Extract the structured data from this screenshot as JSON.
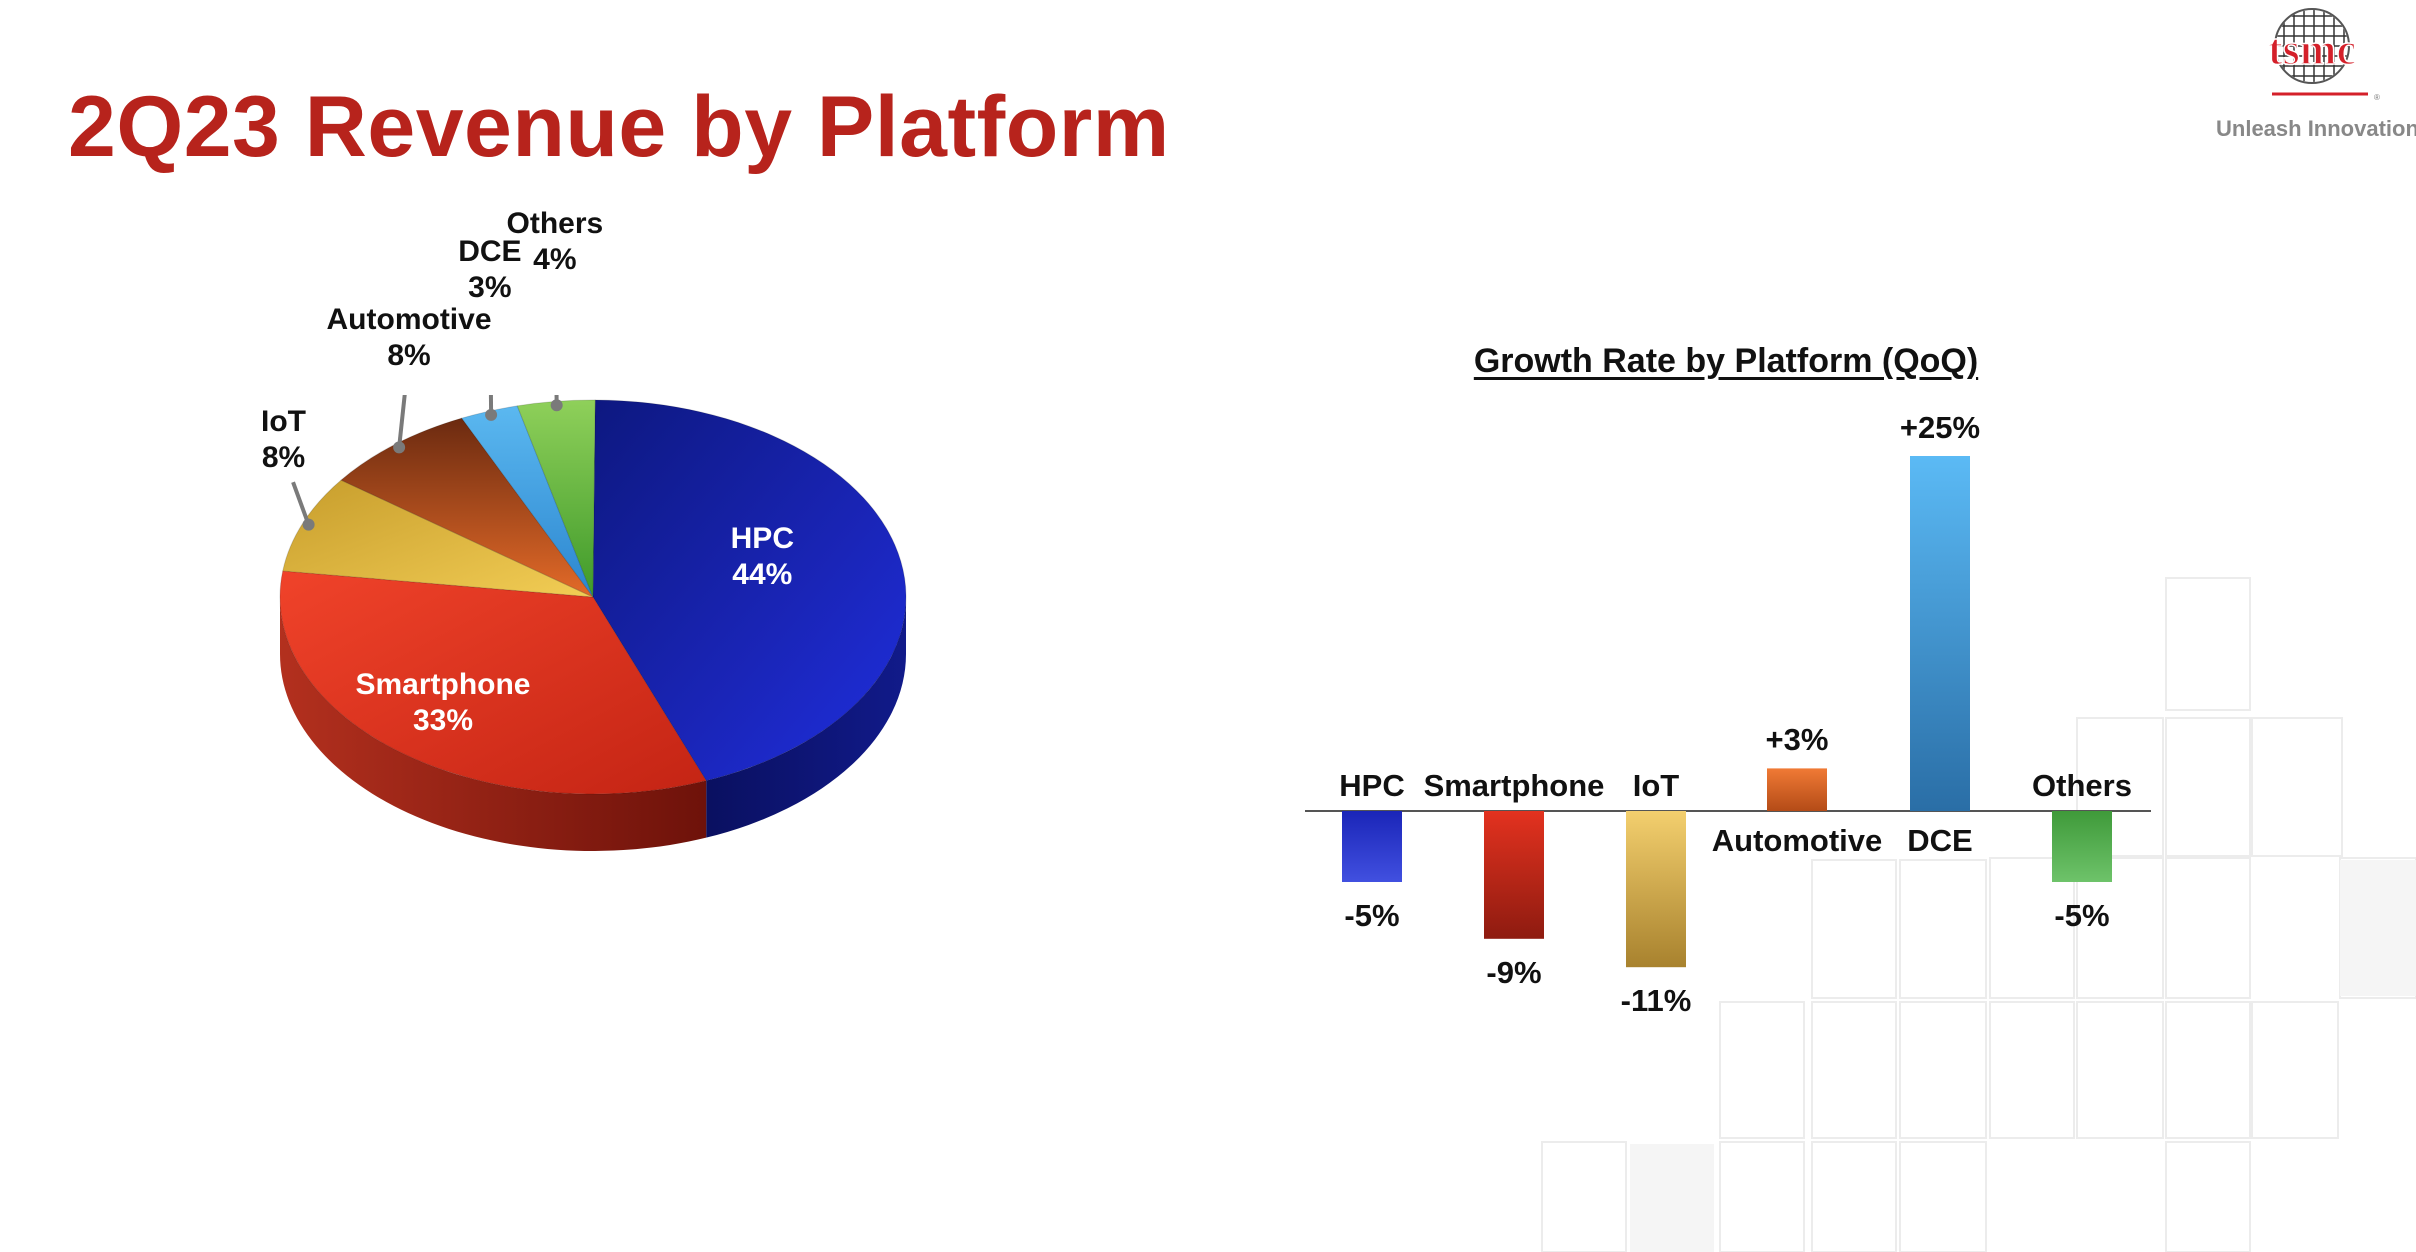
{
  "page": {
    "title": "2Q23 Revenue by Platform"
  },
  "brand": {
    "logo_text": "tsmc",
    "tagline": "Unleash Innovation",
    "color": "#d4202a"
  },
  "colors": {
    "title": "#b7231c",
    "HPC": "#1a25b8",
    "Smartphone": "#e3321f",
    "IoT": "#e3b43c",
    "Automotive": "#c15a1f",
    "DCE": "#4aa6e6",
    "Others": "#5cae3c"
  },
  "chart_data": [
    {
      "type": "pie",
      "title": "",
      "labels": [
        "HPC",
        "Smartphone",
        "IoT",
        "Automotive",
        "DCE",
        "Others"
      ],
      "values": [
        44,
        33,
        8,
        8,
        3,
        4
      ],
      "value_labels": [
        "44%",
        "33%",
        "8%",
        "8%",
        "3%",
        "4%"
      ],
      "style": "3d"
    },
    {
      "type": "bar",
      "title": "Growth Rate by Platform (QoQ)",
      "categories": [
        "HPC",
        "Smartphone",
        "IoT",
        "Automotive",
        "DCE",
        "Others"
      ],
      "values": [
        -5,
        -9,
        -11,
        3,
        25,
        -5
      ],
      "value_labels": [
        "-5%",
        "-9%",
        "-11%",
        "+3%",
        "+25%",
        "-5%"
      ],
      "xlabel": "",
      "ylabel": "",
      "grid": false
    }
  ]
}
